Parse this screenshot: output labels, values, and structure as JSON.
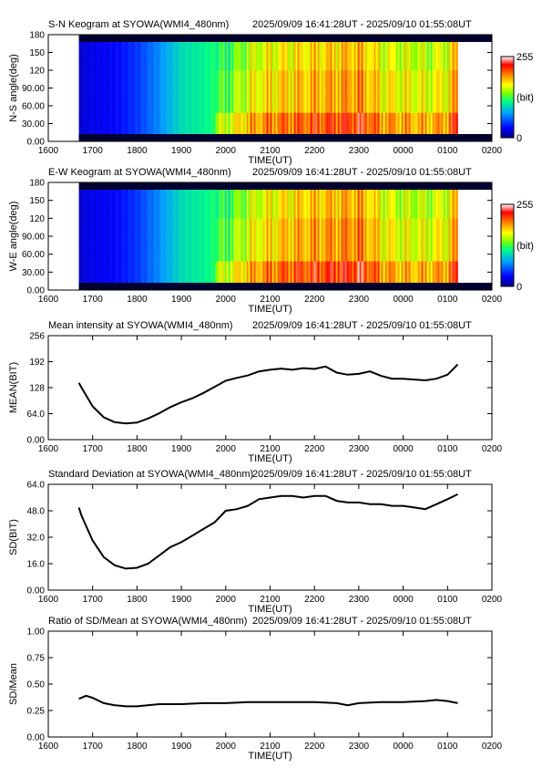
{
  "chart_data": [
    {
      "type": "heatmap",
      "title": "S-N Keogram at SYOWA(WMI4_480nm)",
      "time_range": "2025/09/09 16:41:28UT - 2025/09/10 01:55:08UT",
      "xlabel": "TIME(UT)",
      "ylabel": "N-S angle(deg)",
      "x_ticks": [
        "1600",
        "1700",
        "1800",
        "1900",
        "2000",
        "2100",
        "2200",
        "2300",
        "0000",
        "0100",
        "0200"
      ],
      "y_ticks": [
        "0.00",
        "30.00",
        "60.00",
        "90.00",
        "120",
        "150",
        "180"
      ],
      "ylim": [
        0,
        180
      ],
      "colorbar": {
        "min_label": "0",
        "max_label": "255",
        "unit_label": "(bit)",
        "stops": [
          "#000080",
          "#0000ff",
          "#00a0ff",
          "#00ff80",
          "#80ff00",
          "#ffff00",
          "#ff8000",
          "#ff0000",
          "#ffffff"
        ]
      },
      "intensity_profile": {
        "hours": [
          0.69,
          1.0,
          1.5,
          2.0,
          2.5,
          3.0,
          3.5,
          4.0,
          4.5,
          5.0,
          5.5,
          6.0,
          6.5,
          7.0,
          7.5,
          8.0,
          8.5,
          9.0,
          9.23
        ],
        "values": [
          20,
          25,
          30,
          45,
          70,
          100,
          110,
          130,
          160,
          175,
          180,
          185,
          190,
          195,
          170,
          165,
          160,
          170,
          200
        ]
      }
    },
    {
      "type": "heatmap",
      "title": "E-W Keogram at SYOWA(WMI4_480nm)",
      "time_range": "2025/09/09 16:41:28UT - 2025/09/10 01:55:08UT",
      "xlabel": "TIME(UT)",
      "ylabel": "W-E angle(deg)",
      "x_ticks": [
        "1600",
        "1700",
        "1800",
        "1900",
        "2000",
        "2100",
        "2200",
        "2300",
        "0000",
        "0100",
        "0200"
      ],
      "y_ticks": [
        "0.00",
        "30.00",
        "60.00",
        "90.00",
        "120",
        "150",
        "180"
      ],
      "ylim": [
        0,
        180
      ],
      "colorbar": {
        "min_label": "0",
        "max_label": "255",
        "unit_label": "(bit)",
        "stops": [
          "#000080",
          "#0000ff",
          "#00a0ff",
          "#00ff80",
          "#80ff00",
          "#ffff00",
          "#ff8000",
          "#ff0000",
          "#ffffff"
        ]
      },
      "intensity_profile": {
        "hours": [
          0.69,
          1.0,
          1.5,
          2.0,
          2.5,
          3.0,
          3.5,
          4.0,
          4.5,
          5.0,
          5.5,
          6.0,
          6.5,
          7.0,
          7.5,
          8.0,
          8.5,
          9.0,
          9.23
        ],
        "values": [
          20,
          25,
          30,
          45,
          70,
          100,
          110,
          130,
          160,
          175,
          185,
          190,
          195,
          200,
          170,
          160,
          160,
          170,
          200
        ]
      }
    },
    {
      "type": "line",
      "title": "Mean intensity at SYOWA(WMI4_480nm)",
      "time_range": "2025/09/09 16:41:28UT - 2025/09/10 01:55:08UT",
      "xlabel": "TIME(UT)",
      "ylabel": "MEAN(BIT)",
      "x_ticks": [
        "1600",
        "1700",
        "1800",
        "1900",
        "2000",
        "2100",
        "2200",
        "2300",
        "0000",
        "0100",
        "0200"
      ],
      "y_ticks": [
        "0.00",
        "64.0",
        "128",
        "192",
        "256"
      ],
      "ylim": [
        0,
        256
      ],
      "series": [
        {
          "x": [
            0.69,
            0.75,
            1.0,
            1.25,
            1.5,
            1.75,
            2.0,
            2.25,
            2.5,
            2.75,
            3.0,
            3.25,
            3.5,
            3.75,
            4.0,
            4.25,
            4.5,
            4.75,
            5.0,
            5.25,
            5.5,
            5.75,
            6.0,
            6.25,
            6.5,
            6.75,
            7.0,
            7.25,
            7.5,
            7.75,
            8.0,
            8.25,
            8.5,
            8.75,
            9.0,
            9.23
          ],
          "y": [
            140,
            128,
            82,
            55,
            43,
            40,
            42,
            52,
            65,
            80,
            92,
            102,
            115,
            130,
            145,
            152,
            158,
            168,
            172,
            175,
            172,
            176,
            174,
            180,
            165,
            160,
            162,
            168,
            157,
            150,
            150,
            148,
            146,
            150,
            160,
            185
          ]
        }
      ]
    },
    {
      "type": "line",
      "title": "Standard Deviation at SYOWA(WMI4_480nm)",
      "time_range": "2025/09/09 16:41:28UT - 2025/09/10 01:55:08UT",
      "xlabel": "TIME(UT)",
      "ylabel": "SD(BIT)",
      "x_ticks": [
        "1600",
        "1700",
        "1800",
        "1900",
        "2000",
        "2100",
        "2200",
        "2300",
        "0000",
        "0100",
        "0200"
      ],
      "y_ticks": [
        "0.00",
        "16.0",
        "32.0",
        "48.0",
        "64.0"
      ],
      "ylim": [
        0,
        64
      ],
      "series": [
        {
          "x": [
            0.69,
            0.75,
            1.0,
            1.25,
            1.5,
            1.75,
            2.0,
            2.25,
            2.5,
            2.75,
            3.0,
            3.25,
            3.5,
            3.75,
            4.0,
            4.25,
            4.5,
            4.75,
            5.0,
            5.25,
            5.5,
            5.75,
            6.0,
            6.25,
            6.5,
            6.75,
            7.0,
            7.25,
            7.5,
            7.75,
            8.0,
            8.25,
            8.5,
            8.75,
            9.0,
            9.23
          ],
          "y": [
            50,
            45,
            30,
            20,
            15,
            13,
            13.5,
            16,
            21,
            26,
            29,
            33,
            37,
            41,
            48,
            49,
            51,
            55,
            56,
            57,
            57,
            56,
            57,
            57,
            54,
            53,
            53,
            52,
            52,
            51,
            51,
            50,
            49,
            52,
            55,
            58
          ]
        }
      ]
    },
    {
      "type": "line",
      "title": "Ratio of SD/Mean at SYOWA(WMI4_480nm)",
      "time_range": "2025/09/09 16:41:28UT - 2025/09/10 01:55:08UT",
      "xlabel": "TIME(UT)",
      "ylabel": "SD/Mean",
      "x_ticks": [
        "1600",
        "1700",
        "1800",
        "1900",
        "2000",
        "2100",
        "2200",
        "2300",
        "0000",
        "0100",
        "0200"
      ],
      "y_ticks": [
        "0.00",
        "0.25",
        "0.50",
        "0.75",
        "1.00"
      ],
      "ylim": [
        0,
        1
      ],
      "series": [
        {
          "x": [
            0.69,
            0.85,
            1.0,
            1.25,
            1.5,
            1.75,
            2.0,
            2.5,
            3.0,
            3.5,
            4.0,
            4.5,
            5.0,
            5.5,
            6.0,
            6.5,
            6.75,
            7.0,
            7.5,
            8.0,
            8.5,
            8.75,
            9.0,
            9.23
          ],
          "y": [
            0.36,
            0.39,
            0.37,
            0.32,
            0.3,
            0.29,
            0.29,
            0.31,
            0.31,
            0.32,
            0.32,
            0.33,
            0.33,
            0.33,
            0.33,
            0.32,
            0.3,
            0.32,
            0.33,
            0.33,
            0.34,
            0.35,
            0.34,
            0.32
          ]
        }
      ]
    }
  ]
}
